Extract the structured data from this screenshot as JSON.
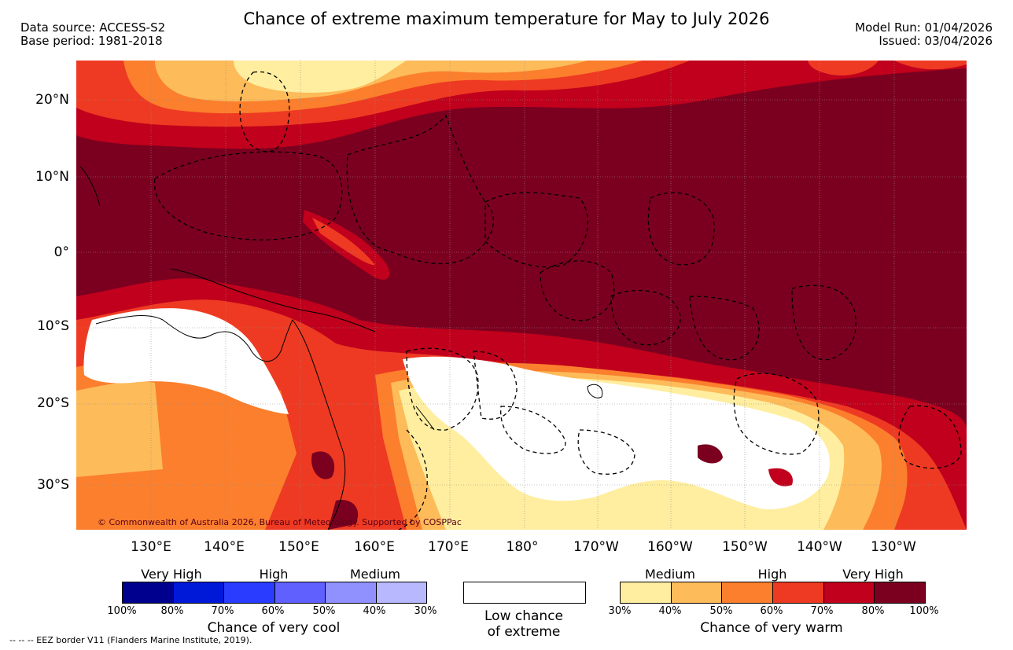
{
  "header": {
    "title": "Chance of extreme maximum temperature for May to July 2026",
    "data_source": "Data source: ACCESS-S2",
    "base_period": "Base period: 1981-2018",
    "model_run": "Model Run: 01/04/2026",
    "issued": "Issued: 03/04/2026"
  },
  "map": {
    "lat_labels": [
      "20°N",
      "10°N",
      "0°",
      "10°S",
      "20°S",
      "30°S"
    ],
    "lon_labels": [
      "130°E",
      "140°E",
      "150°E",
      "160°E",
      "170°E",
      "180°",
      "170°W",
      "160°W",
      "150°W",
      "140°W",
      "130°W"
    ],
    "copyright": "© Commonwealth of Australia 2026, Bureau of Meteorology. Supported by COSPPac"
  },
  "legend": {
    "cool": {
      "levels": [
        "Very High",
        "High",
        "Medium"
      ],
      "ticks": [
        "100%",
        "80%",
        "70%",
        "60%",
        "50%",
        "40%",
        "30%"
      ],
      "caption": "Chance of very cool",
      "colors": [
        "#00008e",
        "#0018d8",
        "#2a3cff",
        "#6060ff",
        "#9090ff",
        "#b8b8ff"
      ]
    },
    "neutral": {
      "caption_line1": "Low chance",
      "caption_line2": "of extreme",
      "color": "#ffffff"
    },
    "warm": {
      "levels": [
        "Medium",
        "High",
        "Very High"
      ],
      "ticks": [
        "30%",
        "40%",
        "50%",
        "60%",
        "70%",
        "80%",
        "100%"
      ],
      "caption": "Chance of very warm",
      "colors": [
        "#ffeea0",
        "#fdbb5a",
        "#fb7f2d",
        "#ee3a22",
        "#c0001c",
        "#7b0020"
      ]
    }
  },
  "footnote": "-- -- -- EEZ border V11 (Flanders Marine Institute, 2019)."
}
